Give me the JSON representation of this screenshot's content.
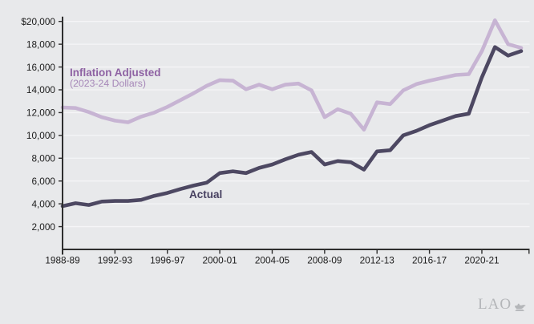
{
  "chart_data": {
    "type": "line",
    "title": "",
    "x_categories": [
      "1988-89",
      "1989-90",
      "1990-91",
      "1991-92",
      "1992-93",
      "1993-94",
      "1994-95",
      "1995-96",
      "1996-97",
      "1997-98",
      "1998-99",
      "1999-00",
      "2000-01",
      "2001-02",
      "2002-03",
      "2003-04",
      "2004-05",
      "2005-06",
      "2006-07",
      "2007-08",
      "2008-09",
      "2009-10",
      "2010-11",
      "2011-12",
      "2012-13",
      "2013-14",
      "2014-15",
      "2015-16",
      "2016-17",
      "2017-18",
      "2018-19",
      "2019-20",
      "2020-21",
      "2021-22",
      "2022-23",
      "2023-24"
    ],
    "series": [
      {
        "key": "inflation_adjusted",
        "name": "Inflation Adjusted (2023-24 Dollars)",
        "color": "#c7b4d3",
        "values": [
          12450,
          12400,
          12050,
          11600,
          11300,
          11150,
          11650,
          12000,
          12500,
          13100,
          13700,
          14350,
          14850,
          14800,
          14050,
          14450,
          14050,
          14450,
          14550,
          13950,
          11600,
          12300,
          11900,
          10500,
          12900,
          12750,
          13950,
          14500,
          14800,
          15050,
          15300,
          15370,
          17400,
          20100,
          18000,
          17680
        ]
      },
      {
        "key": "actual",
        "name": "Actual",
        "color": "#4d4862",
        "values": [
          3800,
          4050,
          3900,
          4200,
          4250,
          4250,
          4350,
          4700,
          4950,
          5300,
          5600,
          5850,
          6700,
          6850,
          6700,
          7150,
          7450,
          7900,
          8300,
          8550,
          7450,
          7750,
          7650,
          7000,
          8600,
          8700,
          10000,
          10400,
          10900,
          11300,
          11700,
          11900,
          15100,
          17750,
          17000,
          17400
        ]
      }
    ],
    "ylim": [
      0,
      20000
    ],
    "yticks": [
      2000,
      4000,
      6000,
      8000,
      10000,
      12000,
      14000,
      16000,
      18000,
      20000
    ],
    "ytick_labels": [
      "2,000",
      "4,000",
      "6,000",
      "8,000",
      "10,000",
      "12,000",
      "14,000",
      "16,000",
      "18,000",
      "$20,000"
    ],
    "xtick_years": [
      "1988-89",
      "1992-93",
      "1996-97",
      "2000-01",
      "2004-05",
      "2008-09",
      "2012-13",
      "2016-17",
      "2020-21"
    ],
    "grid": "horizontal",
    "legend_position": "none",
    "annotations": {
      "inflation_adjusted": {
        "label": "Inflation Adjusted",
        "sublabel": "(2023-24 Dollars)"
      },
      "actual": {
        "label": "Actual"
      }
    }
  },
  "logo": {
    "text": "LAO"
  },
  "colors": {
    "background": "#e8e9eb",
    "gridline": "#f5f5f7",
    "axis": "#2e2e2e",
    "tick_text": "#1c1c1c",
    "inflation_line": "#c7b4d3",
    "actual_line": "#4d4862",
    "inflation_label": "#8e62a3",
    "inflation_sublabel": "#a687b8",
    "actual_label": "#474060",
    "logo": "#b4b6b9"
  }
}
